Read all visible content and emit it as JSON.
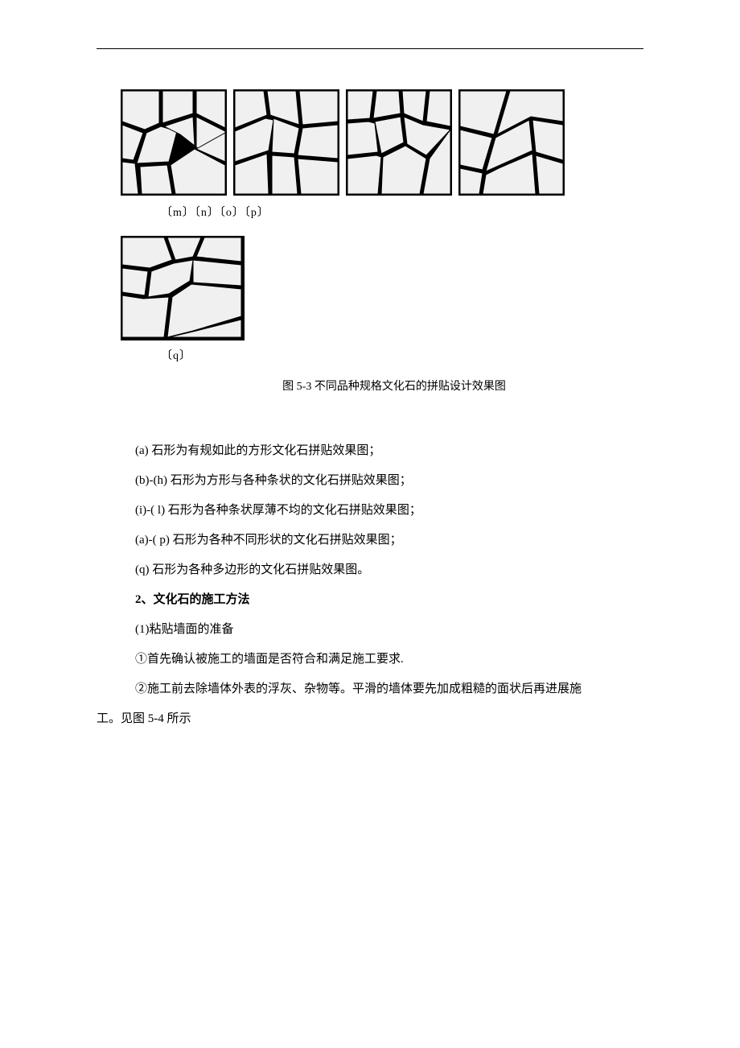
{
  "labels": {
    "row1": "〔m〕〔n〕〔o〕〔p〕",
    "single": "〔q〕"
  },
  "figure_caption": "图 5-3 不同品种规格文化石的拼贴设计效果图",
  "body": {
    "line1": "(a) 石形为有规如此的方形文化石拼贴效果图；",
    "line2": "(b)-(h) 石形为方形与各种条状的文化石拼贴效果图；",
    "line3": "(i)-( l) 石形为各种条状厚薄不均的文化石拼贴效果图；",
    "line4": "(a)-( p) 石形为各种不同形状的文化石拼贴效果图；",
    "line5": "(q) 石形为各种多边形的文化石拼贴效果图。",
    "heading": "2、文化石的施工方法",
    "line6": "(1)粘贴墙面的准备",
    "line7": "①首先确认被施工的墙面是否符合和满足施工要求.",
    "line8a": "②施工前去除墙体外表的浮灰、杂物等。平滑的墙体要先加成粗糙的面状后再进展施",
    "line8b": "工。见图 5-4 所示"
  },
  "panels": {
    "m": {
      "polygons": [
        "2,2 48,2 48,42 30,50 2,40",
        "52,2 90,2 90,30 52,42",
        "94,2 130,2 130,48 94,30",
        "2,44 28,54 16,88 2,86",
        "32,54 50,46 70,52 60,90 20,92",
        "54,46 90,34 92,70 74,56",
        "94,34 130,52 130,90 94,72",
        "2,90 18,92 22,130 2,130",
        "24,96 58,94 64,130 26,130",
        "62,94 92,74 130,94 130,130 68,130",
        "94,74 130,54 130,90"
      ]
    },
    "n": {
      "polygons": [
        "2,2 38,2 42,32 2,48",
        "42,2 78,2 82,44 46,32",
        "82,2 130,2 130,40 86,44",
        "2,52 40,36 50,38 44,76 2,90",
        "50,36 82,48 76,80 48,78",
        "86,48 130,44 130,86 80,82",
        "2,94 42,80 44,130 2,130",
        "48,82 76,84 80,130 48,130",
        "80,86 130,90 130,130 84,130"
      ]
    },
    "o": {
      "polygons": [
        "2,2 34,2 30,36 2,38",
        "38,2 66,2 68,30 34,36",
        "70,2 100,2 96,40 72,30",
        "104,2 130,2 130,46 100,40",
        "2,42 28,40 36,42 40,78 2,82",
        "36,40 68,34 72,66 44,80",
        "72,34 96,44 130,50 100,82 76,68",
        "2,86 38,82 44,84 40,130 2,130",
        "46,84 74,70 100,86 92,130 44,130",
        "104,86 130,50 130,130 96,130"
      ]
    },
    "p": {
      "polygons": [
        "2,2 60,2 44,56 2,46",
        "64,2 130,2 130,40 90,34 48,56",
        "2,50 42,60 30,100 2,94",
        "46,60 88,38 92,76 52,94 34,102",
        "92,38 130,44 130,88 96,78",
        "2,98 30,104 26,130 2,130",
        "34,106 50,98 92,80 96,130 30,130",
        "96,82 130,92 130,130 100,130"
      ]
    },
    "q": {
      "polygons": [
        "2,2 54,2 64,30 36,40 2,36",
        "58,2 100,2 90,26 68,30",
        "104,2 150,2 150,32 94,26",
        "2,40 34,44 30,74 2,70",
        "38,44 66,34 90,30 86,56 60,72 34,76",
        "90,30 150,36 150,62 90,58",
        "2,74 28,78 60,76 54,126 2,126",
        "64,76 88,60 150,66 150,100 90,118 58,126",
        "94,118 150,104 150,126 60,126"
      ]
    }
  }
}
